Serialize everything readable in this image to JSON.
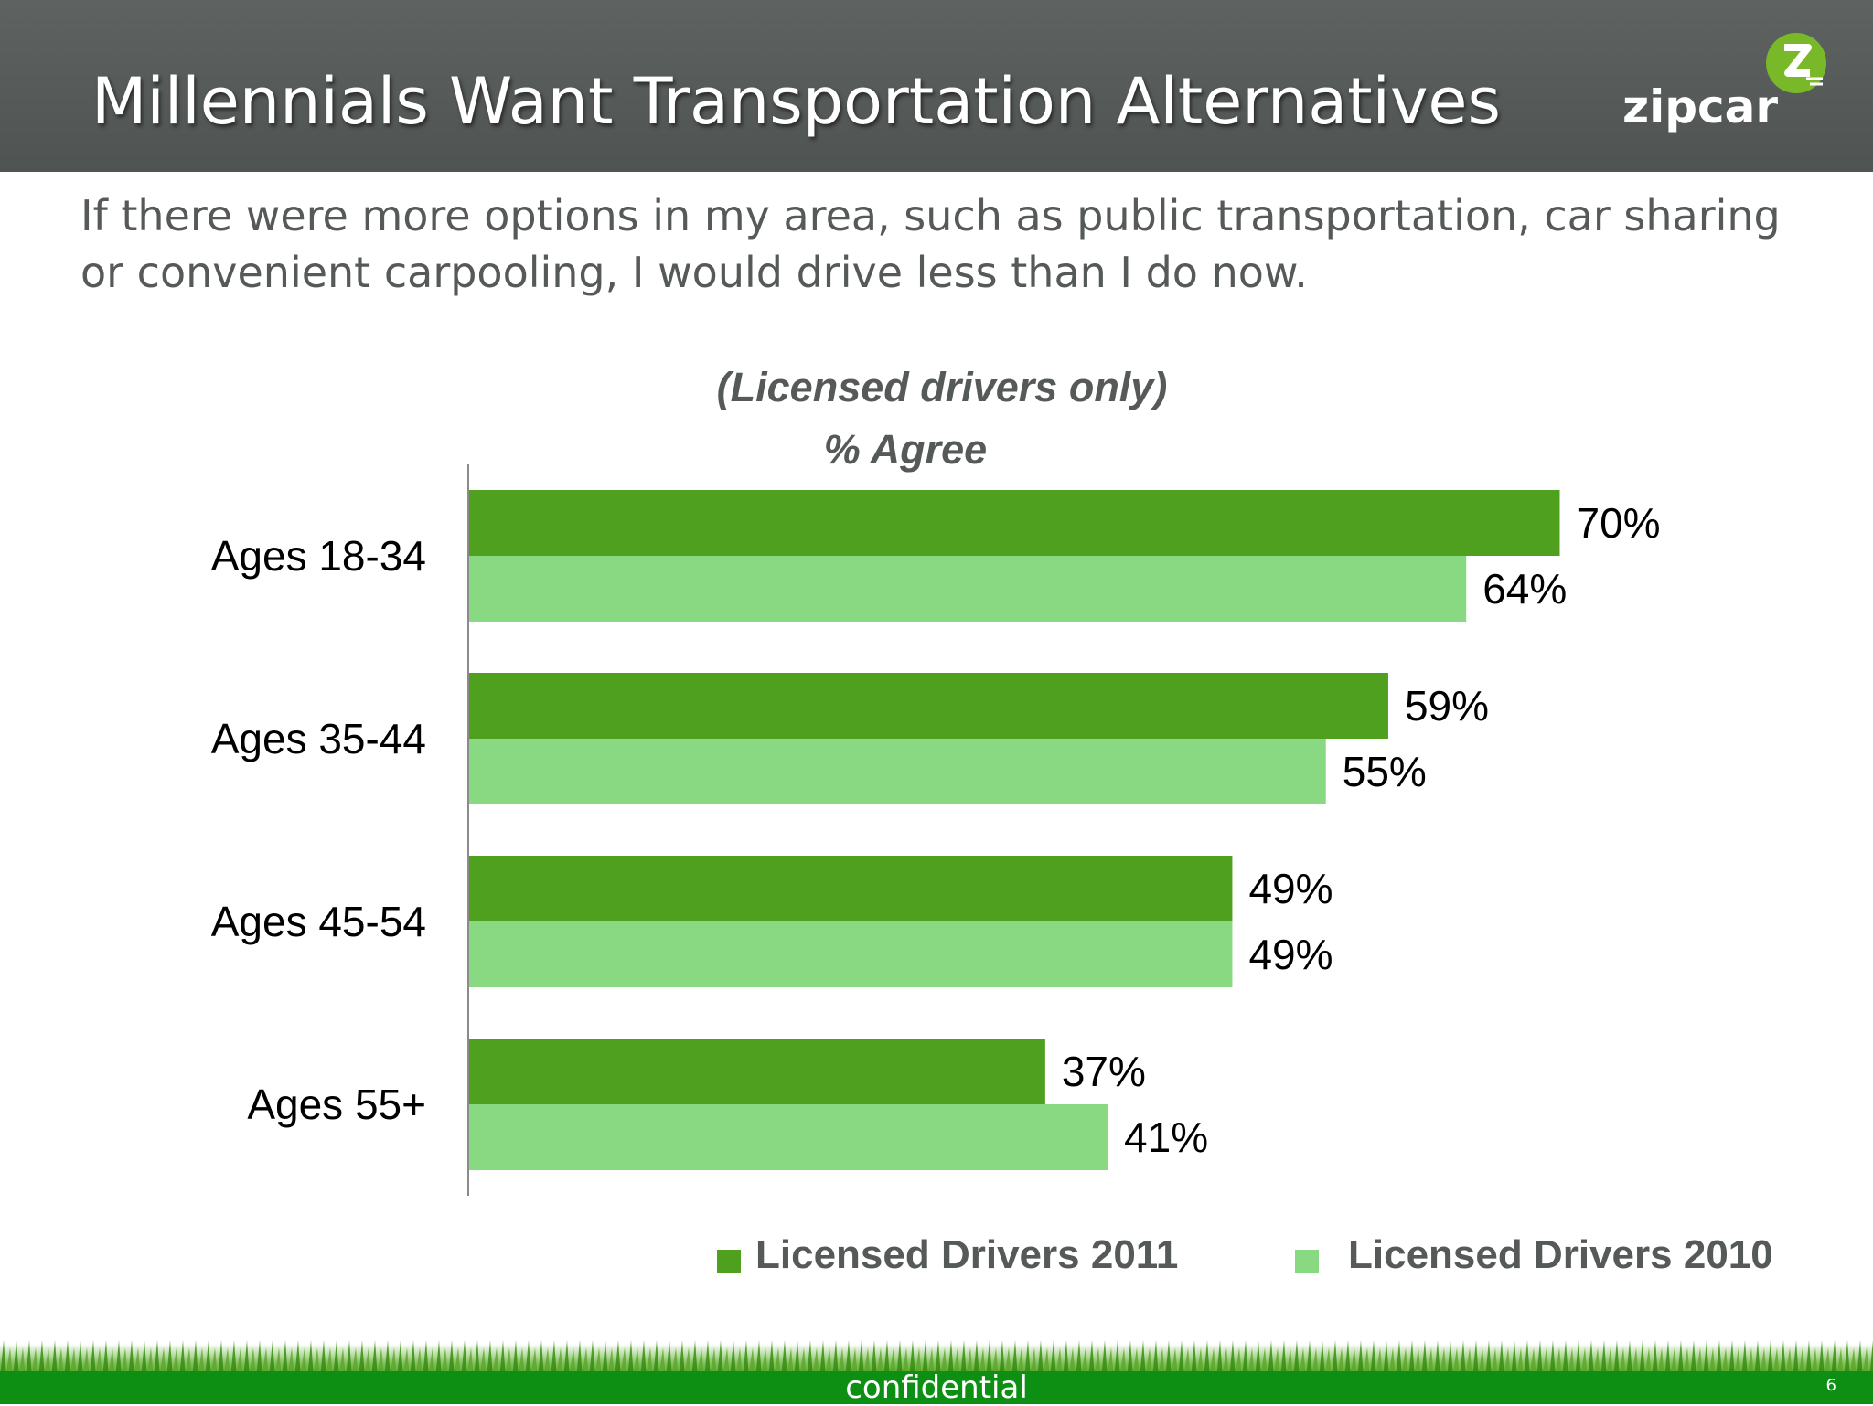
{
  "slide": {
    "title": "Millennials Want Transportation Alternatives",
    "subtitle": "If there were more options in my area, such as public transportation, car sharing or convenient carpooling, I would drive less than I do now.",
    "logo_text": "zipcar",
    "logo_badge_icon": "zipcar-z-icon",
    "footer": "confidential",
    "page_number": "6"
  },
  "colors": {
    "header": "#555a58",
    "series_2011": "#50a020",
    "series_2010": "#88d982",
    "text_gray": "#555a58",
    "footer_green": "#0c8f12"
  },
  "chart_data": {
    "type": "bar",
    "orientation": "horizontal",
    "title": "(Licensed drivers only)",
    "subtitle": "% Agree",
    "categories": [
      "Ages 18-34",
      "Ages 35-44",
      "Ages 45-54",
      "Ages 55+"
    ],
    "series": [
      {
        "name": "Licensed Drivers 2011",
        "values": [
          70,
          59,
          49,
          37
        ],
        "labels": [
          "70%",
          "59%",
          "49%",
          "37%"
        ],
        "color": "#50a020"
      },
      {
        "name": "Licensed Drivers 2010",
        "values": [
          64,
          55,
          49,
          41
        ],
        "labels": [
          "64%",
          "55%",
          "49%",
          "41%"
        ],
        "color": "#88d982"
      }
    ],
    "xlim": [
      0,
      100
    ],
    "grid": false,
    "legend_position": "bottom"
  }
}
